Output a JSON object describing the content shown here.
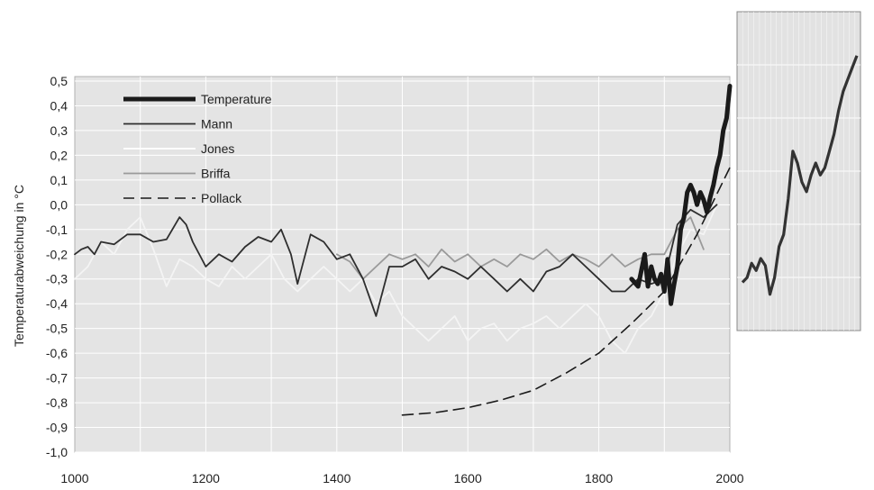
{
  "chart_data": [
    {
      "type": "line",
      "ylabel": "Temperaturabweichung in °C",
      "xlabel": "",
      "xlim": [
        1000,
        2000
      ],
      "ylim": [
        -1.0,
        0.5
      ],
      "x_ticks": [
        "1000",
        "1200",
        "1400",
        "1600",
        "1800",
        "2000"
      ],
      "y_ticks": [
        "0,5",
        "0,4",
        "0,3",
        "0,2",
        "0,1",
        "0,0",
        "-0,1",
        "-0,2",
        "-0,3",
        "-0,4",
        "-0,5",
        "-0,6",
        "-0,7",
        "-0,8",
        "-0,9",
        "-1,0"
      ],
      "grid": true,
      "legend_position": "top-left",
      "series": [
        {
          "name": "Temperature",
          "color": "#1a1a1a",
          "style": "thick",
          "x": [
            1850,
            1860,
            1870,
            1875,
            1880,
            1885,
            1890,
            1895,
            1900,
            1905,
            1910,
            1915,
            1920,
            1925,
            1930,
            1935,
            1940,
            1945,
            1950,
            1955,
            1960,
            1965,
            1970,
            1975,
            1980,
            1985,
            1990,
            1995,
            2000
          ],
          "y": [
            -0.3,
            -0.33,
            -0.2,
            -0.33,
            -0.25,
            -0.3,
            -0.32,
            -0.28,
            -0.35,
            -0.22,
            -0.4,
            -0.32,
            -0.25,
            -0.1,
            -0.05,
            0.05,
            0.08,
            0.05,
            0.0,
            0.05,
            0.02,
            -0.03,
            0.03,
            0.08,
            0.15,
            0.2,
            0.3,
            0.35,
            0.48
          ]
        },
        {
          "name": "Mann",
          "color": "#2e2e2e",
          "style": "solid",
          "x": [
            1000,
            1010,
            1020,
            1030,
            1040,
            1060,
            1080,
            1100,
            1120,
            1140,
            1160,
            1170,
            1180,
            1200,
            1220,
            1240,
            1260,
            1280,
            1300,
            1315,
            1330,
            1340,
            1350,
            1360,
            1380,
            1400,
            1420,
            1440,
            1460,
            1470,
            1480,
            1500,
            1520,
            1540,
            1560,
            1580,
            1600,
            1620,
            1640,
            1660,
            1680,
            1700,
            1720,
            1740,
            1760,
            1780,
            1800,
            1820,
            1840,
            1860,
            1880,
            1900,
            1920,
            1940,
            1960,
            1980
          ],
          "y": [
            -0.2,
            -0.18,
            -0.17,
            -0.2,
            -0.15,
            -0.16,
            -0.12,
            -0.12,
            -0.15,
            -0.14,
            -0.05,
            -0.08,
            -0.15,
            -0.25,
            -0.2,
            -0.23,
            -0.17,
            -0.13,
            -0.15,
            -0.1,
            -0.2,
            -0.32,
            -0.22,
            -0.12,
            -0.15,
            -0.22,
            -0.2,
            -0.3,
            -0.45,
            -0.35,
            -0.25,
            -0.25,
            -0.22,
            -0.3,
            -0.25,
            -0.27,
            -0.3,
            -0.25,
            -0.3,
            -0.35,
            -0.3,
            -0.35,
            -0.27,
            -0.25,
            -0.2,
            -0.25,
            -0.3,
            -0.35,
            -0.35,
            -0.3,
            -0.32,
            -0.3,
            -0.08,
            -0.02,
            -0.05,
            0.0
          ]
        },
        {
          "name": "Jones",
          "color": "#f4f4f4",
          "style": "solid",
          "x": [
            1000,
            1020,
            1040,
            1060,
            1080,
            1100,
            1120,
            1140,
            1160,
            1180,
            1200,
            1220,
            1240,
            1260,
            1280,
            1300,
            1320,
            1340,
            1360,
            1380,
            1400,
            1420,
            1440,
            1460,
            1480,
            1500,
            1520,
            1540,
            1560,
            1580,
            1600,
            1620,
            1640,
            1660,
            1680,
            1700,
            1720,
            1740,
            1760,
            1780,
            1800,
            1820,
            1840,
            1860,
            1880,
            1900,
            1920,
            1940,
            1960,
            1980
          ],
          "y": [
            -0.3,
            -0.25,
            -0.15,
            -0.2,
            -0.1,
            -0.05,
            -0.18,
            -0.33,
            -0.22,
            -0.25,
            -0.3,
            -0.33,
            -0.25,
            -0.3,
            -0.25,
            -0.2,
            -0.3,
            -0.35,
            -0.3,
            -0.25,
            -0.3,
            -0.35,
            -0.3,
            -0.4,
            -0.35,
            -0.45,
            -0.5,
            -0.55,
            -0.5,
            -0.45,
            -0.55,
            -0.5,
            -0.48,
            -0.55,
            -0.5,
            -0.48,
            -0.45,
            -0.5,
            -0.45,
            -0.4,
            -0.45,
            -0.55,
            -0.6,
            -0.5,
            -0.45,
            -0.35,
            -0.2,
            -0.1,
            -0.12,
            0.0
          ]
        },
        {
          "name": "Briffa",
          "color": "#9a9a9a",
          "style": "solid",
          "x": [
            1400,
            1420,
            1440,
            1460,
            1480,
            1500,
            1520,
            1540,
            1560,
            1580,
            1600,
            1620,
            1640,
            1660,
            1680,
            1700,
            1720,
            1740,
            1760,
            1780,
            1800,
            1820,
            1840,
            1860,
            1880,
            1900,
            1920,
            1940,
            1960
          ],
          "y": [
            -0.2,
            -0.23,
            -0.3,
            -0.25,
            -0.2,
            -0.22,
            -0.2,
            -0.25,
            -0.18,
            -0.23,
            -0.2,
            -0.25,
            -0.22,
            -0.25,
            -0.2,
            -0.22,
            -0.18,
            -0.23,
            -0.2,
            -0.22,
            -0.25,
            -0.2,
            -0.25,
            -0.22,
            -0.2,
            -0.2,
            -0.1,
            -0.05,
            -0.18
          ]
        },
        {
          "name": "Pollack",
          "color": "#1a1a1a",
          "style": "dashed",
          "x": [
            1500,
            1550,
            1600,
            1650,
            1700,
            1750,
            1800,
            1850,
            1900,
            1950,
            2000
          ],
          "y": [
            -0.85,
            -0.84,
            -0.82,
            -0.79,
            -0.75,
            -0.68,
            -0.6,
            -0.48,
            -0.35,
            -0.12,
            0.15
          ]
        }
      ]
    },
    {
      "type": "line",
      "xlabel": "",
      "ylabel": "",
      "grid": true,
      "series": [
        {
          "color": "#333333",
          "x": [
            0,
            4,
            8,
            12,
            16,
            20,
            24,
            28,
            32,
            36,
            40,
            44,
            48,
            52,
            56,
            60,
            64,
            68,
            72,
            76,
            80,
            84,
            88,
            92,
            96,
            100
          ],
          "y": [
            0.1,
            0.12,
            0.18,
            0.15,
            0.2,
            0.17,
            0.05,
            0.12,
            0.25,
            0.3,
            0.45,
            0.65,
            0.6,
            0.52,
            0.48,
            0.55,
            0.6,
            0.55,
            0.58,
            0.65,
            0.72,
            0.82,
            0.9,
            0.95,
            1.0,
            1.05
          ]
        }
      ]
    }
  ]
}
